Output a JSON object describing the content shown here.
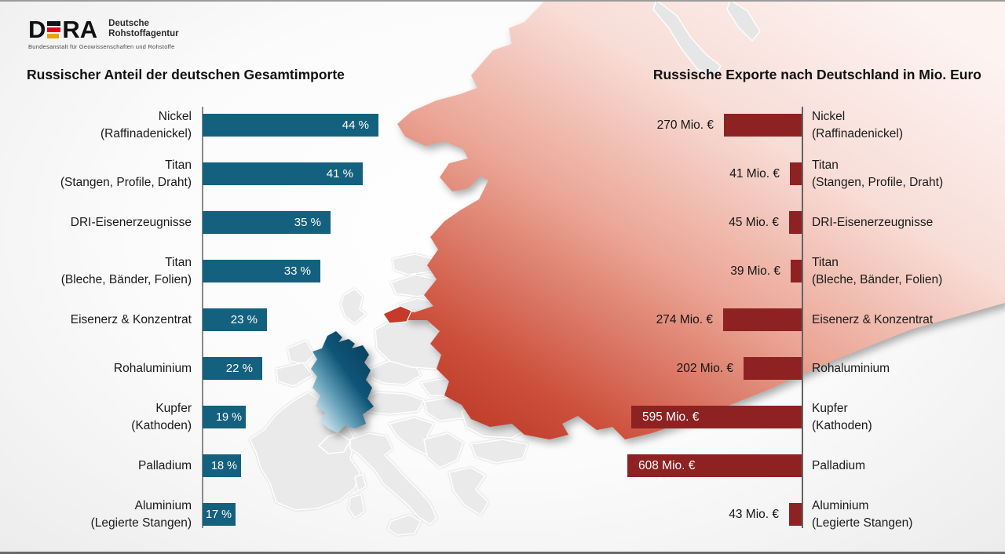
{
  "logo": {
    "acronym_d": "D",
    "acronym_ra": "RA",
    "name_line1": "Deutsche",
    "name_line2": "Rohstoffagentur",
    "subline": "Bundesanstalt für Geowissenschaften und Rohstoffe"
  },
  "chart_data": [
    {
      "type": "bar",
      "orientation": "horizontal-bars-extending-right",
      "title": "Russischer Anteil der deutschen Gesamtimporte",
      "unit": "%",
      "categories": [
        "Nickel (Raffinadenickel)",
        "Titan (Stangen, Profile, Draht)",
        "DRI-Eisenerzeugnisse",
        "Titan (Bleche, Bänder, Folien)",
        "Eisenerz & Konzentrat",
        "Rohaluminium",
        "Kupfer (Kathoden)",
        "Palladium",
        "Aluminium (Legierte Stangen)"
      ],
      "label_lines": [
        [
          "Nickel",
          "(Raffinadenickel)"
        ],
        [
          "Titan",
          "(Stangen, Profile, Draht)"
        ],
        [
          "DRI-Eisenerzeugnisse"
        ],
        [
          "Titan",
          "(Bleche, Bänder, Folien)"
        ],
        [
          "Eisenerz & Konzentrat"
        ],
        [
          "Rohaluminium"
        ],
        [
          "Kupfer",
          "(Kathoden)"
        ],
        [
          "Palladium"
        ],
        [
          "Aluminium",
          "(Legierte Stangen)"
        ]
      ],
      "values": [
        44,
        41,
        35,
        33,
        23,
        22,
        19,
        18,
        17
      ],
      "display_values": [
        "44 %",
        "41 %",
        "35 %",
        "33 %",
        "23 %",
        "22 %",
        "19 %",
        "18 %",
        "17 %"
      ],
      "bar_color": "#14607F",
      "value_label_position": "inside-end",
      "grid": false,
      "legend": false
    },
    {
      "type": "bar",
      "orientation": "horizontal-bars-extending-left",
      "title": "Russische Exporte nach Deutschland in Mio. Euro",
      "unit": "Mio. Euro",
      "categories": [
        "Nickel (Raffinadenickel)",
        "Titan (Stangen, Profile, Draht)",
        "DRI-Eisenerzeugnisse",
        "Titan (Bleche, Bänder, Folien)",
        "Eisenerz & Konzentrat",
        "Rohaluminium",
        "Kupfer (Kathoden)",
        "Palladium",
        "Aluminium (Legierte Stangen)"
      ],
      "label_lines": [
        [
          "Nickel",
          "(Raffinadenickel)"
        ],
        [
          "Titan",
          "(Stangen, Profile, Draht)"
        ],
        [
          "DRI-Eisenerzeugnisse"
        ],
        [
          "Titan",
          "(Bleche, Bänder, Folien)"
        ],
        [
          "Eisenerz & Konzentrat"
        ],
        [
          "Rohaluminium"
        ],
        [
          "Kupfer",
          "(Kathoden)"
        ],
        [
          "Palladium"
        ],
        [
          "Aluminium",
          "(Legierte Stangen)"
        ]
      ],
      "values": [
        270,
        41,
        45,
        39,
        274,
        202,
        595,
        608,
        43
      ],
      "display_values": [
        "270 Mio. €",
        "41 Mio. €",
        "45 Mio. €",
        "39 Mio. €",
        "274 Mio. €",
        "202 Mio. €",
        "595 Mio. €",
        "608 Mio. €",
        "43 Mio. €"
      ],
      "bar_color": "#8E2222",
      "value_label_position": "outside-start-or-inside-when-long",
      "grid": false,
      "legend": false
    }
  ],
  "map": {
    "highlighted_import_country": "Deutschland",
    "highlighted_export_country": "Russland",
    "germany_color_dark": "#0A3C5A",
    "germany_color_light": "#ECF5F8",
    "russia_color_dark": "#B42F1F",
    "russia_color_light": "#FDF4F2",
    "kaliningrad_color": "#C63A2A",
    "neutral_country_color": "#EAEAEA",
    "country_border_color": "#FFFFFF"
  },
  "colors": {
    "frame_line_top": "#9B9B9B",
    "frame_line_bottom": "#6A6A6A",
    "title_text": "#101010",
    "label_text": "#1A1A1A",
    "bar_value_inside": "#FFFFFF"
  }
}
